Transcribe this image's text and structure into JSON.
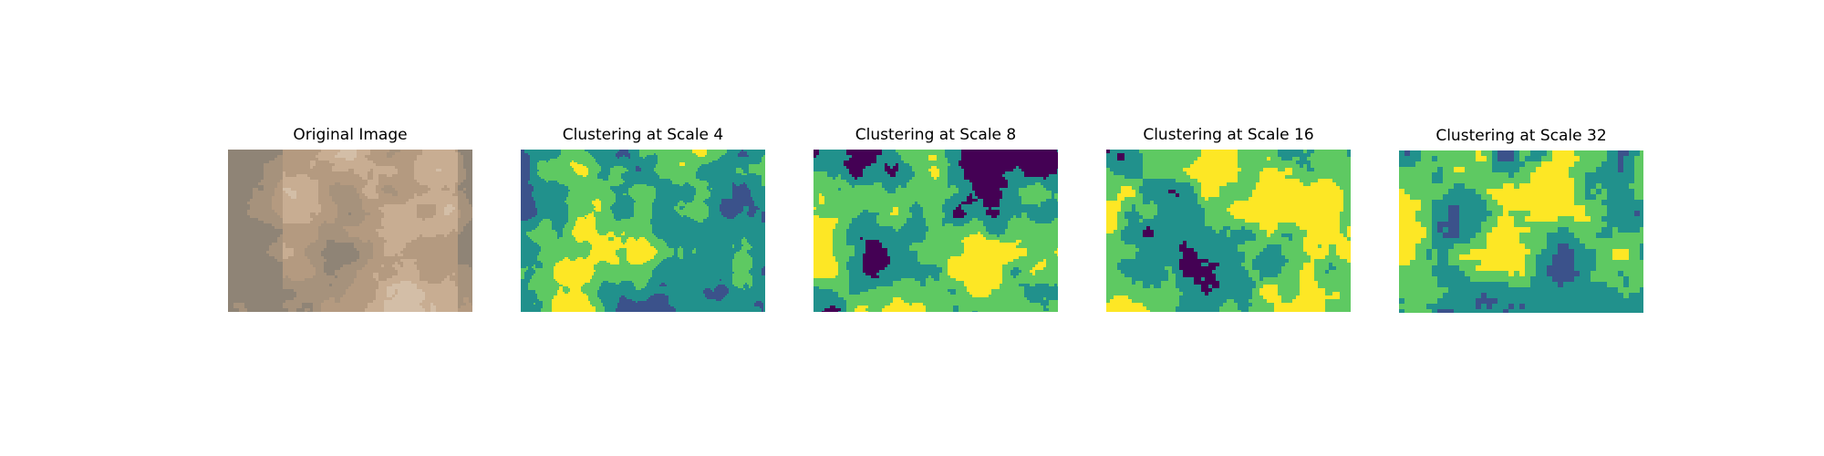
{
  "figure": {
    "panels": [
      {
        "title": "Original Image",
        "kind": "photo",
        "palette": [
          "#b49a80",
          "#c8ad92",
          "#8f8476",
          "#a6927c",
          "#d3bea7"
        ]
      },
      {
        "title": "Clustering at Scale 4",
        "kind": "cluster",
        "clusters": 4,
        "palette": [
          "#3b528b",
          "#21918c",
          "#5ec962",
          "#fde725",
          "#440154"
        ]
      },
      {
        "title": "Clustering at Scale 8",
        "kind": "cluster",
        "clusters": 4,
        "palette": [
          "#440154",
          "#21918c",
          "#5ec962",
          "#fde725",
          "#3b528b"
        ]
      },
      {
        "title": "Clustering at Scale 16",
        "kind": "cluster",
        "clusters": 4,
        "palette": [
          "#440154",
          "#21918c",
          "#5ec962",
          "#fde725",
          "#3b528b"
        ]
      },
      {
        "title": "Clustering at Scale 32",
        "kind": "cluster",
        "clusters": 4,
        "palette": [
          "#3b528b",
          "#21918c",
          "#5ec962",
          "#fde725",
          "#440154"
        ]
      }
    ]
  }
}
